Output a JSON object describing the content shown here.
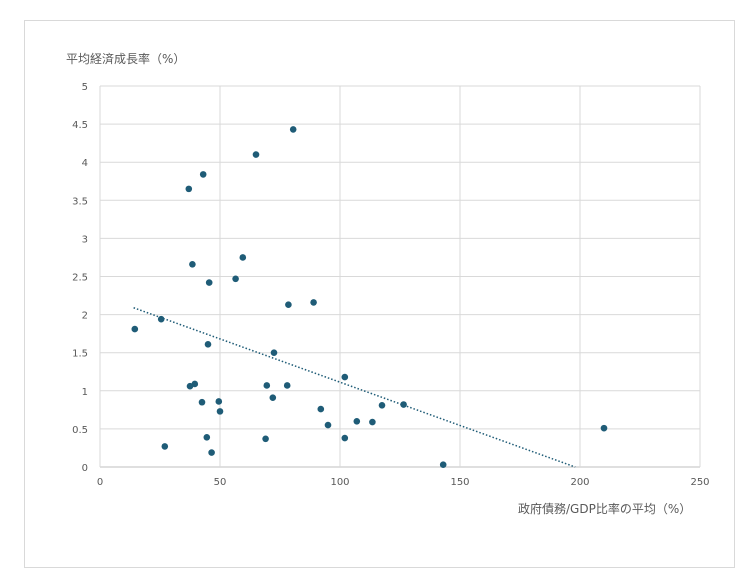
{
  "chart_data": {
    "type": "scatter",
    "title": "",
    "xlabel": "政府債務/GDP比率の平均（%）",
    "ylabel": "平均経済成長率（%）",
    "xlim": [
      0,
      250
    ],
    "ylim": [
      0,
      5
    ],
    "x_ticks": [
      "0",
      "50",
      "100",
      "150",
      "200",
      "250"
    ],
    "y_ticks": [
      "0",
      "0.5",
      "1",
      "1.5",
      "2",
      "2.5",
      "3",
      "3.5",
      "4",
      "4.5",
      "5"
    ],
    "grid": true,
    "legend": "none",
    "marker_color": "#1f5c77",
    "trendline": {
      "style": "dotted linear",
      "from": [
        14,
        2.09
      ],
      "to": [
        198,
        0.0
      ]
    },
    "points": [
      [
        14.5,
        1.81
      ],
      [
        25.5,
        1.94
      ],
      [
        27,
        0.27
      ],
      [
        37,
        3.65
      ],
      [
        37.5,
        1.06
      ],
      [
        38.5,
        2.66
      ],
      [
        39.5,
        1.09
      ],
      [
        42.5,
        0.85
      ],
      [
        43,
        3.84
      ],
      [
        44.5,
        0.39
      ],
      [
        45,
        1.61
      ],
      [
        45.5,
        2.42
      ],
      [
        46.5,
        0.19
      ],
      [
        49.5,
        0.86
      ],
      [
        50,
        0.73
      ],
      [
        56.5,
        2.47
      ],
      [
        59.5,
        2.75
      ],
      [
        65,
        4.1
      ],
      [
        69,
        0.37
      ],
      [
        69.5,
        1.07
      ],
      [
        72,
        0.91
      ],
      [
        72.5,
        1.5
      ],
      [
        78,
        1.07
      ],
      [
        78.5,
        2.13
      ],
      [
        80.5,
        4.43
      ],
      [
        89,
        2.16
      ],
      [
        92,
        0.76
      ],
      [
        95,
        0.55
      ],
      [
        102,
        1.18
      ],
      [
        102,
        0.38
      ],
      [
        107,
        0.6
      ],
      [
        113.5,
        0.59
      ],
      [
        117.5,
        0.81
      ],
      [
        126.5,
        0.82
      ],
      [
        143,
        0.03
      ],
      [
        210,
        0.51
      ]
    ]
  }
}
